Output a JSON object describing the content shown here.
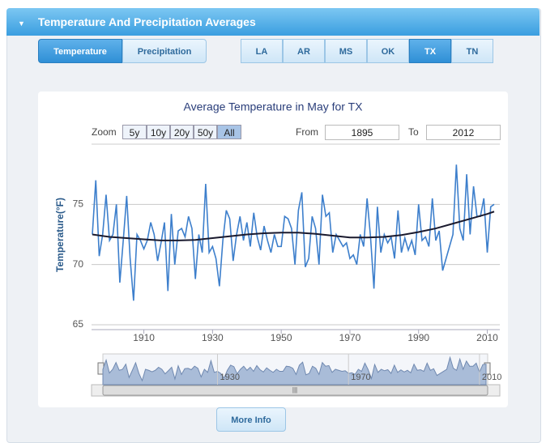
{
  "header": {
    "title": "Temperature And Precipitation Averages"
  },
  "tabs": [
    {
      "label": "Temperature",
      "selected": true
    },
    {
      "label": "Precipitation",
      "selected": false
    }
  ],
  "states": [
    {
      "label": "LA",
      "selected": false
    },
    {
      "label": "AR",
      "selected": false
    },
    {
      "label": "MS",
      "selected": false
    },
    {
      "label": "OK",
      "selected": false
    },
    {
      "label": "TX",
      "selected": true
    },
    {
      "label": "TN",
      "selected": false
    }
  ],
  "zoom": {
    "label": "Zoom",
    "buttons": [
      {
        "label": "5y",
        "selected": false
      },
      {
        "label": "10y",
        "selected": false
      },
      {
        "label": "20y",
        "selected": false
      },
      {
        "label": "50y",
        "selected": false
      },
      {
        "label": "All",
        "selected": true
      }
    ]
  },
  "range": {
    "from_label": "From",
    "from": "1895",
    "to_label": "To",
    "to": "2012"
  },
  "more_info": "More Info",
  "chart_data": {
    "type": "line",
    "title": "Average Temperature in May for TX",
    "y_label": "Temperature(°F)",
    "xlim": [
      1895,
      2012
    ],
    "xticks": [
      1910,
      1930,
      1950,
      1970,
      1990,
      2010
    ],
    "ylim": [
      65,
      80
    ],
    "yticks": [
      65,
      70,
      75
    ],
    "grid": true,
    "x": [
      1895,
      1896,
      1897,
      1898,
      1899,
      1900,
      1901,
      1902,
      1903,
      1904,
      1905,
      1906,
      1907,
      1908,
      1909,
      1910,
      1911,
      1912,
      1913,
      1914,
      1915,
      1916,
      1917,
      1918,
      1919,
      1920,
      1921,
      1922,
      1923,
      1924,
      1925,
      1926,
      1927,
      1928,
      1929,
      1930,
      1931,
      1932,
      1933,
      1934,
      1935,
      1936,
      1937,
      1938,
      1939,
      1940,
      1941,
      1942,
      1943,
      1944,
      1945,
      1946,
      1947,
      1948,
      1949,
      1950,
      1951,
      1952,
      1953,
      1954,
      1955,
      1956,
      1957,
      1958,
      1959,
      1960,
      1961,
      1962,
      1963,
      1964,
      1965,
      1966,
      1967,
      1968,
      1969,
      1970,
      1971,
      1972,
      1973,
      1974,
      1975,
      1976,
      1977,
      1978,
      1979,
      1980,
      1981,
      1982,
      1983,
      1984,
      1985,
      1986,
      1987,
      1988,
      1989,
      1990,
      1991,
      1992,
      1993,
      1994,
      1995,
      1996,
      1997,
      1998,
      1999,
      2000,
      2001,
      2002,
      2003,
      2004,
      2005,
      2006,
      2007,
      2008,
      2009,
      2010,
      2011,
      2012
    ],
    "series": [
      {
        "color": "#3d7fcc",
        "values": [
          72.5,
          77,
          70.7,
          72.5,
          75.8,
          72,
          72.5,
          75,
          68.5,
          72,
          75.7,
          70.5,
          67,
          72.5,
          72,
          71.3,
          72,
          73.5,
          72.5,
          70.3,
          71.8,
          73.5,
          67.8,
          74.2,
          70,
          72.8,
          73,
          72.3,
          74,
          73,
          68.8,
          72.5,
          71,
          76.7,
          71,
          71.5,
          70.5,
          68.2,
          72,
          74.5,
          73.8,
          70.3,
          72.5,
          74,
          72,
          73.5,
          71.5,
          74.3,
          72.3,
          71.2,
          73.2,
          72,
          71,
          72.5,
          71.5,
          71.5,
          74,
          73.8,
          73,
          70,
          74.5,
          76,
          69.8,
          70.5,
          74,
          73,
          70,
          75.8,
          74,
          74.3,
          71,
          72.5,
          72,
          71.5,
          71.8,
          70.5,
          70.8,
          70,
          72.5,
          71.5,
          75.5,
          72.3,
          68,
          74.8,
          71,
          72.5,
          71.8,
          72.3,
          70.5,
          74.5,
          71,
          72.2,
          71.2,
          72,
          70.8,
          75,
          72,
          72.3,
          71.5,
          75.5,
          72,
          72.8,
          69.5,
          70.5,
          71.5,
          72.5,
          78.3,
          73,
          72,
          77.5,
          72.5,
          76.5,
          74,
          74,
          75.5,
          71,
          74.8,
          75
        ]
      },
      {
        "color": "#1a1a2e",
        "x": [
          1895,
          1900,
          1905,
          1910,
          1915,
          1920,
          1925,
          1930,
          1935,
          1940,
          1945,
          1950,
          1955,
          1960,
          1965,
          1970,
          1975,
          1980,
          1985,
          1990,
          1995,
          2000,
          2005,
          2010,
          2012
        ],
        "values": [
          72.5,
          72.3,
          72.2,
          72.1,
          72,
          72,
          72.05,
          72.2,
          72.35,
          72.5,
          72.6,
          72.65,
          72.65,
          72.55,
          72.4,
          72.25,
          72.25,
          72.3,
          72.45,
          72.7,
          73,
          73.4,
          73.8,
          74.2,
          74.4
        ]
      }
    ],
    "navigator": {
      "xticks": [
        1930,
        1970,
        2010
      ]
    }
  }
}
